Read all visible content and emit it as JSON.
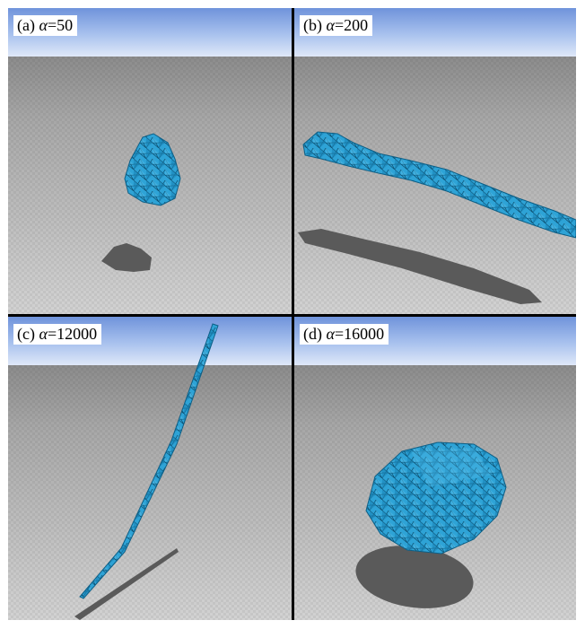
{
  "panels": [
    {
      "id": "a",
      "letter": "(a)",
      "symbol": "α",
      "eq": "=",
      "value": "50"
    },
    {
      "id": "b",
      "letter": "(b)",
      "symbol": "α",
      "eq": "=",
      "value": "200"
    },
    {
      "id": "c",
      "letter": "(c)",
      "symbol": "α",
      "eq": "=",
      "value": "12000"
    },
    {
      "id": "d",
      "letter": "(d)",
      "symbol": "α",
      "eq": "=",
      "value": "16000"
    }
  ],
  "colors": {
    "mesh": "#2ea3d6",
    "mesh_dark": "#0d5f86",
    "sky": "#8fb0e6",
    "floor": "#b9b9b9",
    "shadow": "#5a5a5a"
  }
}
